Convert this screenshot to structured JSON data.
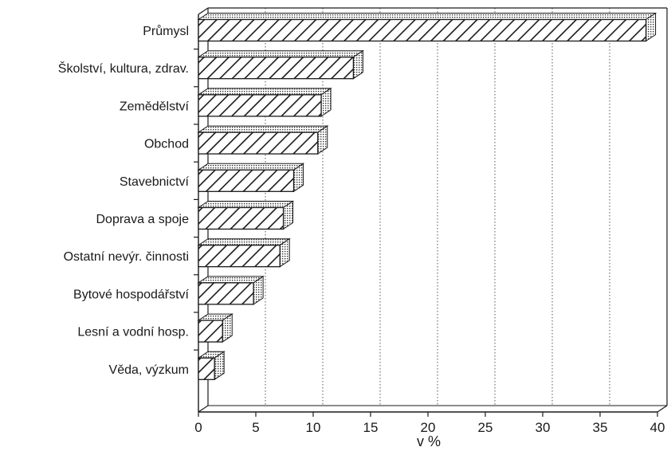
{
  "chart_data": {
    "type": "bar",
    "orientation": "horizontal",
    "categories": [
      "Průmysl",
      "Školství, kultura, zdrav.",
      "Zemědělství",
      "Obchod",
      "Stavebnictví",
      "Doprava a spoje",
      "Ostatní nevýr. činnosti",
      "Bytové hospodářství",
      "Lesní a vodní hosp.",
      "Věda, výzkum"
    ],
    "values": [
      39.0,
      13.5,
      10.7,
      10.4,
      8.3,
      7.4,
      7.1,
      4.8,
      2.1,
      1.4
    ],
    "xlabel": "v %",
    "ylabel": "",
    "xlim": [
      0,
      40
    ],
    "x_ticks": [
      0,
      5,
      10,
      15,
      20,
      25,
      30,
      35,
      40
    ],
    "grid": "vertical dotted",
    "style": "3d hatched bars",
    "bar_fill": "#ffffff",
    "bar_stroke": "#1a1a1a"
  }
}
